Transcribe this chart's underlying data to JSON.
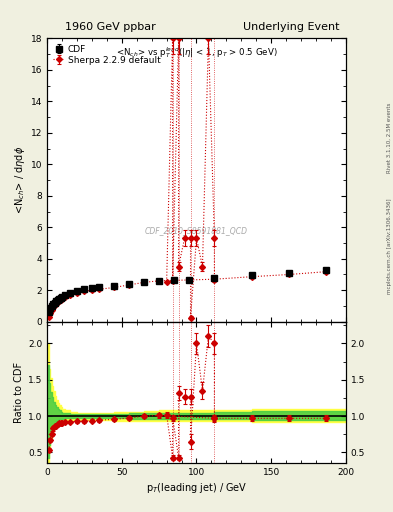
{
  "title_left": "1960 GeV ppbar",
  "title_right": "Underlying Event",
  "xlabel": "p$_{T}$(leading jet) / GeV",
  "ylabel_main": "<N$_{ch}$> / d$\\eta$d$\\phi$",
  "ylabel_ratio": "Ratio to CDF",
  "subtitle": "<N$_{ch}$> vs p$_{T}^{lead}$(|$\\eta$| < 1, p$_{T}$ > 0.5 GeV)",
  "watermark": "CDF_2010_S8591881_QCD",
  "right_label_top": "Rivet 3.1.10, 2.5M events",
  "right_label_bottom": "mcplots.cern.ch [arXiv:1306.3436]",
  "xlim": [
    0,
    200
  ],
  "ylim_main": [
    0,
    18
  ],
  "ylim_ratio": [
    0.35,
    2.3
  ],
  "cdf_x": [
    1,
    2,
    3,
    4,
    5,
    6,
    7,
    8,
    9,
    10,
    12,
    15,
    20,
    25,
    30,
    35,
    45,
    55,
    65,
    75,
    85,
    95,
    112,
    137,
    162,
    187
  ],
  "cdf_y": [
    0.62,
    0.85,
    1.02,
    1.12,
    1.22,
    1.32,
    1.4,
    1.47,
    1.53,
    1.6,
    1.72,
    1.83,
    1.97,
    2.07,
    2.13,
    2.18,
    2.28,
    2.4,
    2.5,
    2.58,
    2.65,
    2.65,
    2.78,
    2.95,
    3.1,
    3.28
  ],
  "cdf_yerr": [
    0.04,
    0.04,
    0.04,
    0.04,
    0.04,
    0.04,
    0.04,
    0.04,
    0.04,
    0.04,
    0.04,
    0.04,
    0.04,
    0.04,
    0.04,
    0.04,
    0.04,
    0.04,
    0.04,
    0.04,
    0.04,
    0.04,
    0.04,
    0.04,
    0.04,
    0.04
  ],
  "sherpa_x_normal": [
    1,
    2,
    3,
    4,
    5,
    6,
    7,
    8,
    9,
    10,
    12,
    15,
    20,
    25,
    30,
    35,
    45,
    55,
    65,
    75,
    112,
    137,
    162,
    187
  ],
  "sherpa_y_normal": [
    0.33,
    0.57,
    0.77,
    0.93,
    1.05,
    1.15,
    1.24,
    1.32,
    1.39,
    1.46,
    1.58,
    1.69,
    1.83,
    1.93,
    2.0,
    2.06,
    2.18,
    2.34,
    2.5,
    2.6,
    2.7,
    2.86,
    3.0,
    3.18
  ],
  "sherpa_yerr_normal": [
    0.02,
    0.02,
    0.02,
    0.02,
    0.02,
    0.02,
    0.02,
    0.02,
    0.02,
    0.02,
    0.02,
    0.02,
    0.02,
    0.02,
    0.02,
    0.02,
    0.02,
    0.03,
    0.04,
    0.05,
    0.06,
    0.06,
    0.07,
    0.07
  ],
  "sherpa_x_spike": [
    80,
    84,
    84,
    88,
    88,
    92,
    96,
    96,
    100,
    104,
    108,
    112,
    112
  ],
  "sherpa_y_spike": [
    2.55,
    18.0,
    2.58,
    18.0,
    3.5,
    5.3,
    5.3,
    0.25,
    5.3,
    3.5,
    18.0,
    5.3,
    2.65
  ],
  "sherpa_yerr_spike": [
    0.05,
    1.0,
    0.05,
    1.0,
    0.3,
    0.5,
    0.5,
    0.1,
    0.5,
    0.3,
    1.0,
    0.5,
    0.1
  ],
  "vlines_x": [
    84,
    88,
    96,
    112
  ],
  "yellow_band_x": [
    0,
    1,
    2,
    3,
    4,
    5,
    6,
    7,
    8,
    9,
    10,
    12,
    15,
    20,
    25,
    30,
    35,
    45,
    55,
    65,
    75,
    112,
    137,
    162,
    187,
    200
  ],
  "yellow_band_low": [
    0.35,
    0.35,
    0.52,
    0.67,
    0.76,
    0.83,
    0.88,
    0.91,
    0.93,
    0.94,
    0.95,
    0.95,
    0.95,
    0.95,
    0.95,
    0.95,
    0.95,
    0.95,
    0.94,
    0.93,
    0.93,
    0.93,
    0.93,
    0.92,
    0.92,
    0.92
  ],
  "yellow_band_high": [
    2.0,
    2.0,
    1.65,
    1.52,
    1.42,
    1.35,
    1.28,
    1.22,
    1.18,
    1.15,
    1.12,
    1.1,
    1.08,
    1.06,
    1.05,
    1.05,
    1.05,
    1.05,
    1.06,
    1.06,
    1.07,
    1.08,
    1.09,
    1.1,
    1.1,
    1.1
  ],
  "green_band_x": [
    0,
    1,
    2,
    3,
    4,
    5,
    6,
    7,
    8,
    9,
    10,
    12,
    15,
    20,
    25,
    30,
    35,
    45,
    55,
    65,
    75,
    112,
    137,
    162,
    187,
    200
  ],
  "green_band_low": [
    0.42,
    0.42,
    0.6,
    0.73,
    0.81,
    0.87,
    0.91,
    0.94,
    0.95,
    0.96,
    0.96,
    0.96,
    0.97,
    0.97,
    0.97,
    0.97,
    0.97,
    0.97,
    0.97,
    0.96,
    0.96,
    0.96,
    0.96,
    0.95,
    0.95,
    0.95
  ],
  "green_band_high": [
    1.7,
    1.7,
    1.45,
    1.33,
    1.26,
    1.2,
    1.16,
    1.12,
    1.1,
    1.08,
    1.06,
    1.05,
    1.04,
    1.03,
    1.03,
    1.03,
    1.03,
    1.03,
    1.03,
    1.04,
    1.04,
    1.05,
    1.06,
    1.07,
    1.07,
    1.07
  ],
  "ratio_x_normal": [
    1,
    2,
    3,
    4,
    5,
    6,
    7,
    8,
    9,
    10,
    12,
    15,
    20,
    25,
    30,
    35,
    45,
    55,
    65,
    75,
    112,
    137,
    162,
    187
  ],
  "ratio_y_normal": [
    0.53,
    0.67,
    0.76,
    0.83,
    0.86,
    0.87,
    0.89,
    0.9,
    0.91,
    0.91,
    0.92,
    0.92,
    0.93,
    0.93,
    0.94,
    0.945,
    0.957,
    0.975,
    1.0,
    1.01,
    0.97,
    0.97,
    0.97,
    0.97
  ],
  "ratio_yerr_normal": [
    0.03,
    0.03,
    0.03,
    0.03,
    0.02,
    0.02,
    0.02,
    0.02,
    0.02,
    0.02,
    0.02,
    0.02,
    0.02,
    0.02,
    0.02,
    0.02,
    0.02,
    0.03,
    0.03,
    0.04,
    0.04,
    0.04,
    0.04,
    0.04
  ],
  "ratio_x_spike": [
    80,
    84,
    84,
    88,
    88,
    92,
    96,
    96,
    100,
    104,
    108,
    112,
    112
  ],
  "ratio_y_spike": [
    1.02,
    0.43,
    0.98,
    0.43,
    1.32,
    1.27,
    1.27,
    0.65,
    2.0,
    1.35,
    2.1,
    2.0,
    0.97
  ],
  "ratio_yerr_spike": [
    0.04,
    0.04,
    0.04,
    0.04,
    0.1,
    0.1,
    0.1,
    0.1,
    0.15,
    0.12,
    0.15,
    0.15,
    0.05
  ],
  "bg_color": "#f0f0e0",
  "plot_bg": "#ffffff",
  "cdf_color": "#000000",
  "sherpa_color": "#cc0000",
  "yellow_color": "#ffff44",
  "green_color": "#44cc44"
}
